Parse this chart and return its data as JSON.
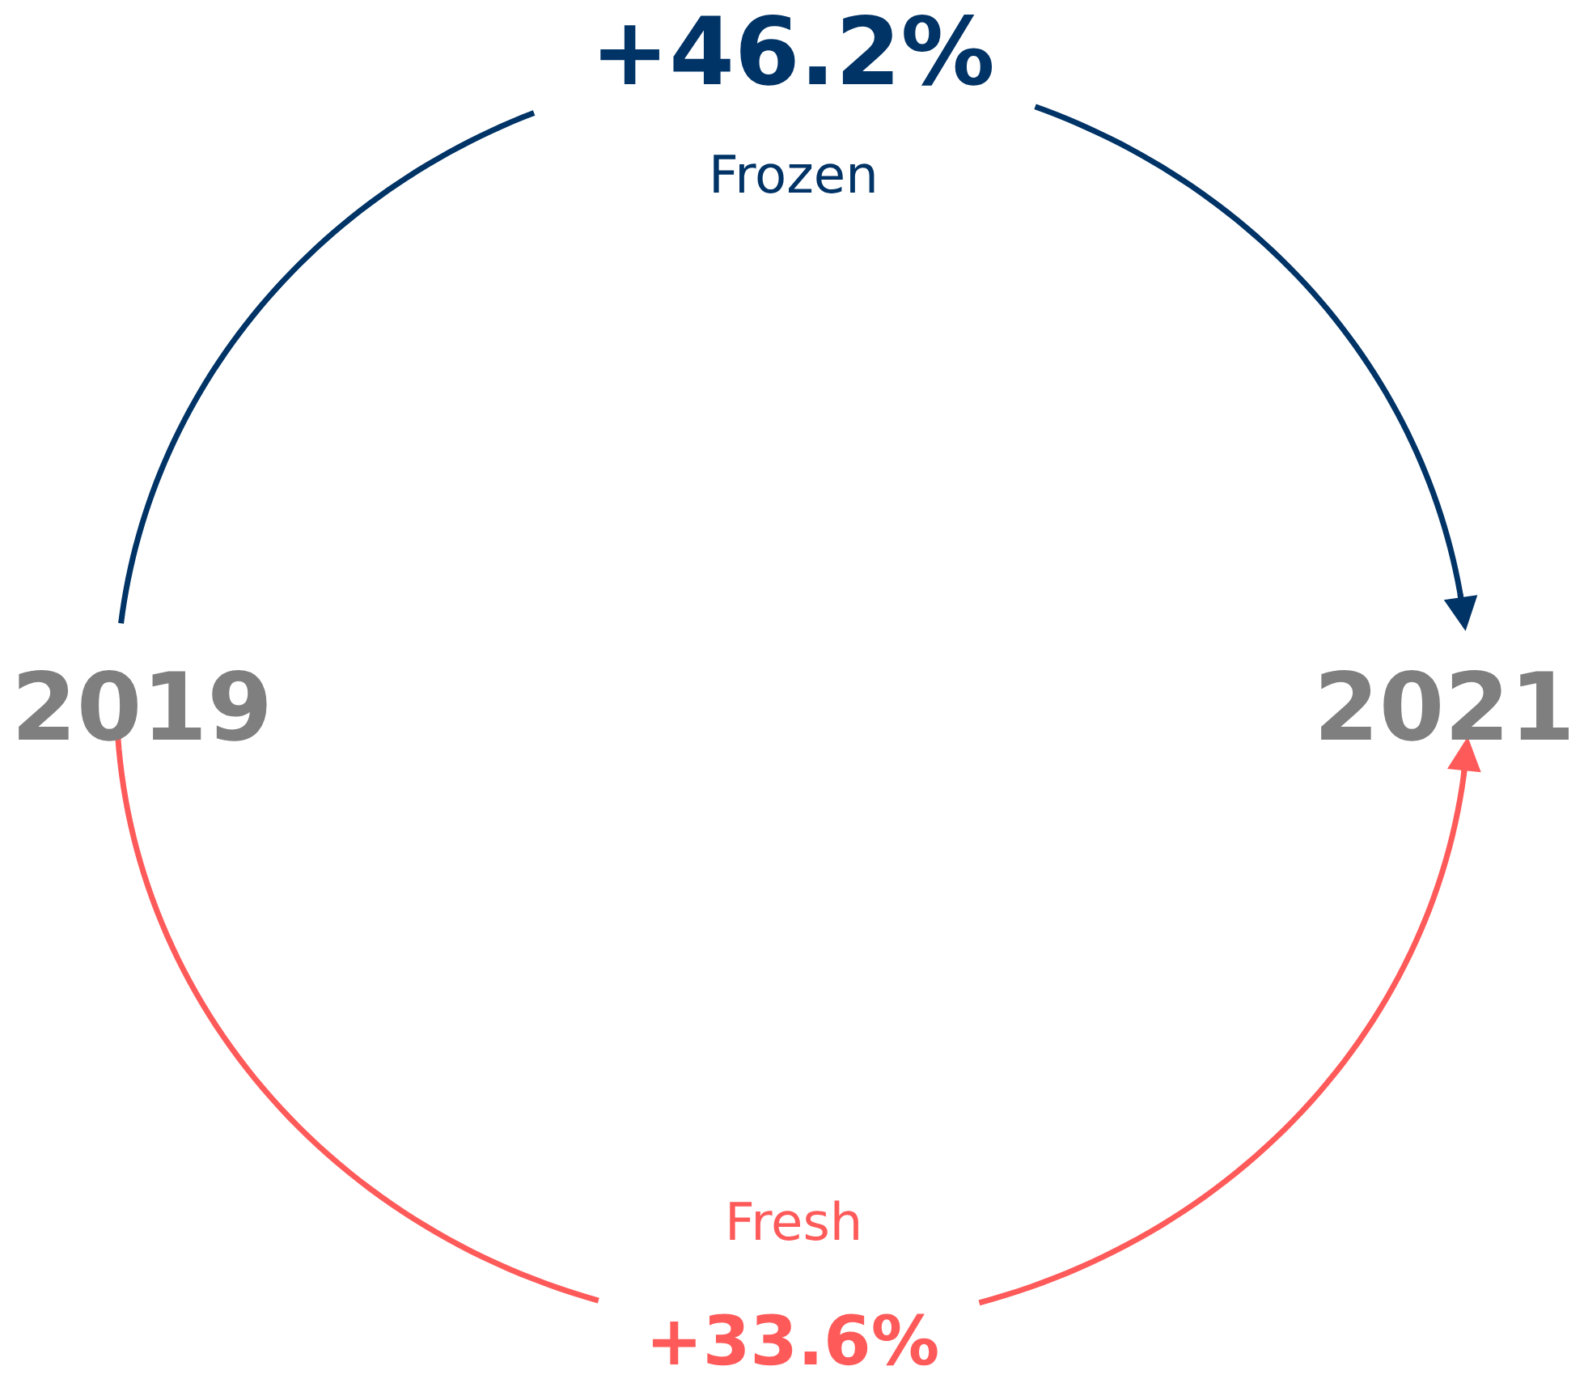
{
  "chart_data": {
    "type": "other",
    "categories": [
      "Frozen",
      "Fresh"
    ],
    "values": [
      46.2,
      33.6
    ],
    "value_labels": [
      "+46.2%",
      "+33.6%"
    ],
    "colors": [
      "#003366",
      "#ff5a5a"
    ],
    "annotations": [
      "2019",
      "2021"
    ]
  }
}
